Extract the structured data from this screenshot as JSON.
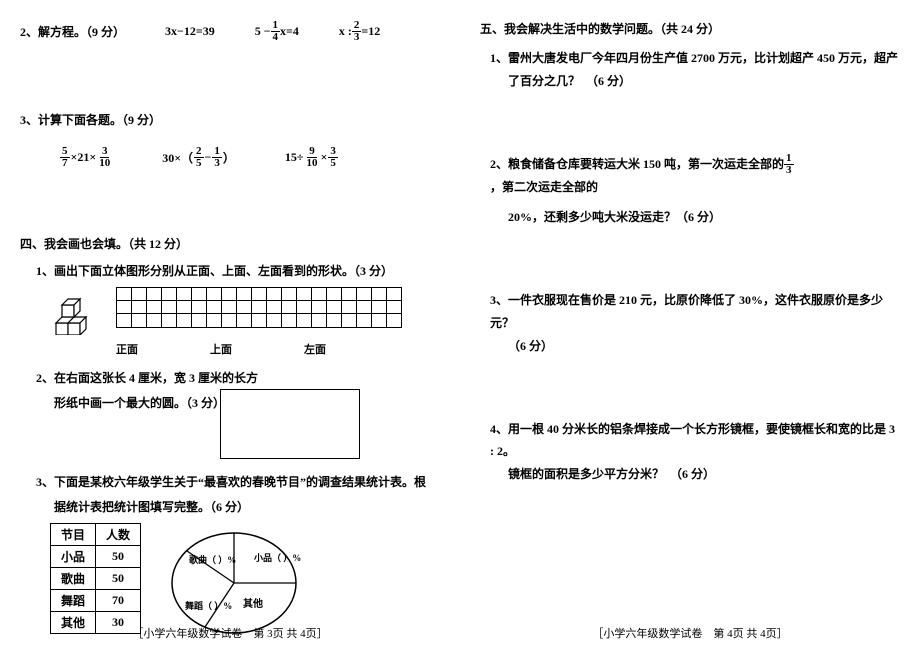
{
  "left": {
    "q2": {
      "title": "2、解方程。（9 分）",
      "eq1_a": "3x−12=39",
      "eq2_pre": "5 −",
      "eq2_num": "1",
      "eq2_den": "4",
      "eq2_post": "x=4",
      "eq3_pre": "x :",
      "eq3_num": "2",
      "eq3_den": "3",
      "eq3_post": "=12"
    },
    "q3": {
      "title": "3、计算下面各题。（9 分）",
      "e1_n1": "5",
      "e1_d1": "7",
      "e1_mid": "×21×",
      "e1_n2": "3",
      "e1_d2": "10",
      "e2_pre": "30×（",
      "e2_n1": "2",
      "e2_d1": "5",
      "e2_mid": "−",
      "e2_n2": "1",
      "e2_d2": "3",
      "e2_post": "）",
      "e3_pre": "15÷",
      "e3_n1": "9",
      "e3_d1": "10",
      "e3_mid": "×",
      "e3_n2": "3",
      "e3_d2": "5"
    },
    "sec4": {
      "heading": "四、我会画也会填。（共 12 分）",
      "s1": "1、画出下面立体图形分别从正面、上面、左面看到的形状。（3 分）",
      "label_front": "正面",
      "label_top": "上面",
      "label_left": "左面",
      "s2a": "2、在右面这张长 4 厘米，宽 3 厘米的长方",
      "s2b": "形纸中画一个最大的圆。（3 分）",
      "s3a": "3、下面是某校六年级学生关于“最喜欢的春晚节目”的调查结果统计表。根",
      "s3b": "据统计表把统计图填写完整。（6 分）",
      "table": {
        "h1": "节目",
        "h2": "人数",
        "r1a": "小品",
        "r1b": "50",
        "r2a": "歌曲",
        "r2b": "50",
        "r3a": "舞蹈",
        "r3b": "70",
        "r4a": "其他",
        "r4b": "30"
      },
      "pie": {
        "l_gequ": "歌曲（  ）%",
        "l_xiaopin": "小品（  ）%",
        "l_wudao": "舞蹈（  ）%",
        "l_qita": "其他"
      }
    },
    "footer": "［小学六年级数学试卷　第 3页 共 4页］"
  },
  "right": {
    "sec5": {
      "heading": "五、我会解决生活中的数学问题。（共 24 分）",
      "q1a": "1、雷州大唐发电厂今年四月份生产值 2700 万元，比计划超产 450 万元，超产",
      "q1b": "了百分之几？　（6 分）",
      "q2a_pre": "2、粮食储备仓库要转运大米 150 吨，第一次运走全部的",
      "q2_frac_n": "1",
      "q2_frac_d": "3",
      "q2a_post": "，第二次运走全部的",
      "q2b": "20%，还剩多少吨大米没运走？（6 分）",
      "q3a": "3、一件衣服现在售价是 210 元，比原价降低了 30%，这件衣服原价是多少元？",
      "q3b": "（6 分）",
      "q4a": "4、用一根 40 分米长的铝条焊接成一个长方形镜框，要使镜框长和宽的比是 3 : 2。",
      "q4b": "镜框的面积是多少平方分米？　（6 分）"
    },
    "footer": "［小学六年级数学试卷　第 4页 共 4页］"
  },
  "style": {
    "grid_cols": 19,
    "grid_rows": 3,
    "pie_stroke": "#000000"
  }
}
